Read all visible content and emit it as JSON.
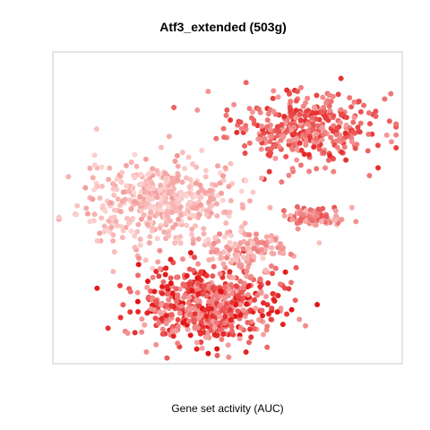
{
  "chart_data": {
    "type": "scatter",
    "title": "Atf3_extended (503g)",
    "xlabel": "Gene set activity (AUC)",
    "ylabel": "",
    "axes_visible": false,
    "legend": "none",
    "grid": false,
    "color_scale": {
      "low": "#fde0dd",
      "mid": "#f08080",
      "high": "#e00000"
    },
    "clusters": [
      {
        "name": "upper-right",
        "cx": 0.72,
        "cy": 0.76,
        "rx": 0.24,
        "ry": 0.13,
        "n": 380,
        "intensity": [
          0.35,
          0.85
        ]
      },
      {
        "name": "left",
        "cx": 0.3,
        "cy": 0.52,
        "rx": 0.26,
        "ry": 0.15,
        "n": 460,
        "intensity": [
          0.05,
          0.35
        ]
      },
      {
        "name": "bottom",
        "cx": 0.45,
        "cy": 0.18,
        "rx": 0.22,
        "ry": 0.14,
        "n": 620,
        "intensity": [
          0.3,
          0.95
        ]
      },
      {
        "name": "right-tail",
        "cx": 0.75,
        "cy": 0.47,
        "rx": 0.1,
        "ry": 0.04,
        "n": 90,
        "intensity": [
          0.2,
          0.7
        ]
      },
      {
        "name": "bridge",
        "cx": 0.56,
        "cy": 0.36,
        "rx": 0.12,
        "ry": 0.07,
        "n": 120,
        "intensity": [
          0.1,
          0.5
        ]
      }
    ]
  }
}
